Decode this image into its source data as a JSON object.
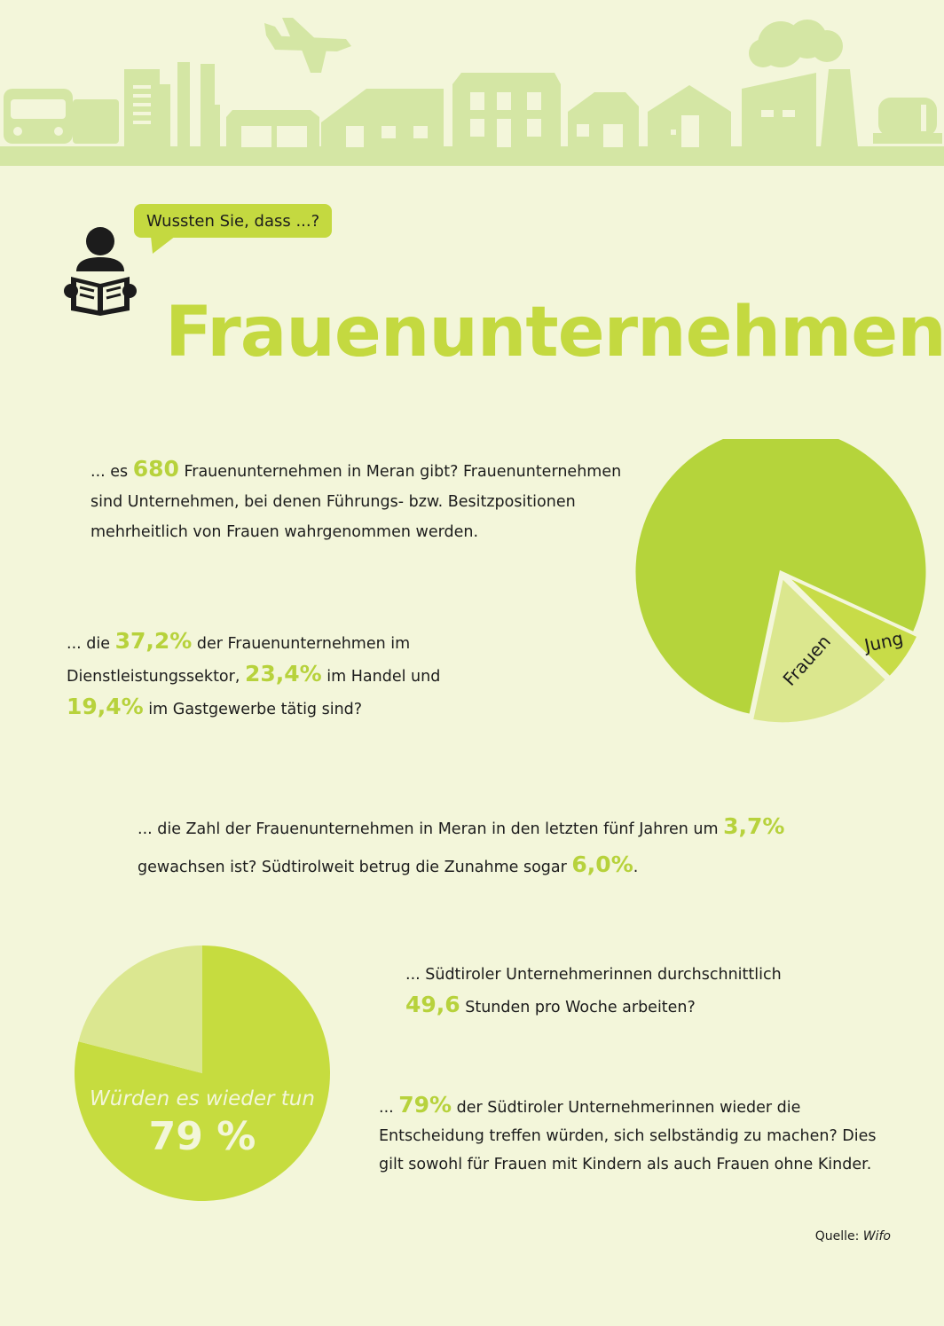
{
  "header": {
    "bubble_text": "Wussten Sie, dass ...?",
    "title": "Frauenunternehmen"
  },
  "facts": [
    {
      "pre": "... es ",
      "highlight": "680",
      "post": " Frauenunternehmen in Meran gibt? Frauenunternehmen sind Unternehmen, bei denen Führungs- bzw. Besitzpositionen mehrheitlich von Frauen wahrgenommen werden."
    },
    {
      "pre": "... die ",
      "h1": "37,2%",
      "mid1": " der Frauenunternehmen im Dienstleistungssektor, ",
      "h2": "23,4%",
      "mid2": " im Handel und ",
      "h3": "19,4%",
      "post": " im Gastgewerbe tätig sind?"
    },
    {
      "pre": "... die Zahl der Frauenunternehmen in Meran in den letzten fünf Jahren um ",
      "h1": "3,7%",
      "mid": " gewachsen ist? Südtirolweit betrug die Zunahme sogar ",
      "h2": "6,0%",
      "post": "."
    },
    {
      "pre": "... Südtiroler Unternehmerinnen durchschnittlich ",
      "highlight": "49,6",
      "post": " Stunden pro Woche arbeiten?"
    },
    {
      "pre": "... ",
      "highlight": "79%",
      "post": " der Südtiroler Unternehmerinnen wieder die Entscheidung treffen würden, sich selbständig zu machen? Dies gilt sowohl für Frauen mit Kindern als auch Frauen ohne Kinder."
    }
  ],
  "chart_data": [
    {
      "type": "pie",
      "slices": [
        {
          "label": "",
          "value": 78.5,
          "color": "#b5d43b"
        },
        {
          "label": "Jung",
          "value": 5.5,
          "color": "#c8dc48"
        },
        {
          "label": "Frauen",
          "value": 16.0,
          "color": "#dbe78e"
        }
      ]
    },
    {
      "type": "pie",
      "slices": [
        {
          "label": "Würden es wieder tun",
          "value": 79,
          "value_label": "79 %",
          "color": "#c6dc3f"
        },
        {
          "label": "",
          "value": 21,
          "color": "#dbe790"
        }
      ]
    }
  ],
  "source": {
    "label": "Quelle: ",
    "name": "Wifo"
  },
  "colors": {
    "background": "#f3f6da",
    "accent": "#c4d940",
    "skyline": "#d4e6a4"
  }
}
